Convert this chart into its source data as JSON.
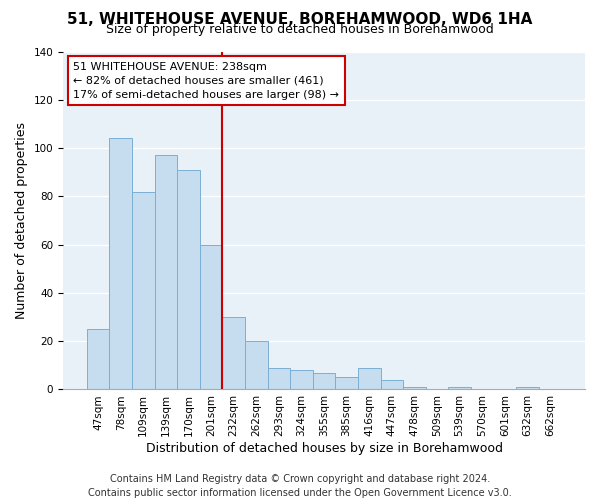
{
  "title": "51, WHITEHOUSE AVENUE, BOREHAMWOOD, WD6 1HA",
  "subtitle": "Size of property relative to detached houses in Borehamwood",
  "xlabel": "Distribution of detached houses by size in Borehamwood",
  "ylabel": "Number of detached properties",
  "bar_labels": [
    "47sqm",
    "78sqm",
    "109sqm",
    "139sqm",
    "170sqm",
    "201sqm",
    "232sqm",
    "262sqm",
    "293sqm",
    "324sqm",
    "355sqm",
    "385sqm",
    "416sqm",
    "447sqm",
    "478sqm",
    "509sqm",
    "539sqm",
    "570sqm",
    "601sqm",
    "632sqm",
    "662sqm"
  ],
  "bar_values": [
    25,
    104,
    82,
    97,
    91,
    60,
    30,
    20,
    9,
    8,
    7,
    5,
    9,
    4,
    1,
    0,
    1,
    0,
    0,
    1,
    0
  ],
  "bar_color": "#c6ddef",
  "bar_edge_color": "#7bafd4",
  "highlight_bar_index": 6,
  "highlight_line_color": "#cc0000",
  "annotation_text": "51 WHITEHOUSE AVENUE: 238sqm\n← 82% of detached houses are smaller (461)\n17% of semi-detached houses are larger (98) →",
  "annotation_box_color": "#ffffff",
  "annotation_box_edge_color": "#cc0000",
  "ylim": [
    0,
    140
  ],
  "yticks": [
    0,
    20,
    40,
    60,
    80,
    100,
    120,
    140
  ],
  "footer_line1": "Contains HM Land Registry data © Crown copyright and database right 2024.",
  "footer_line2": "Contains public sector information licensed under the Open Government Licence v3.0.",
  "plot_bg_color": "#e8f0f8",
  "fig_bg_color": "#ffffff",
  "grid_color": "#ffffff",
  "title_fontsize": 11,
  "subtitle_fontsize": 9,
  "axis_label_fontsize": 9,
  "tick_fontsize": 7.5,
  "annotation_fontsize": 8,
  "footer_fontsize": 7
}
